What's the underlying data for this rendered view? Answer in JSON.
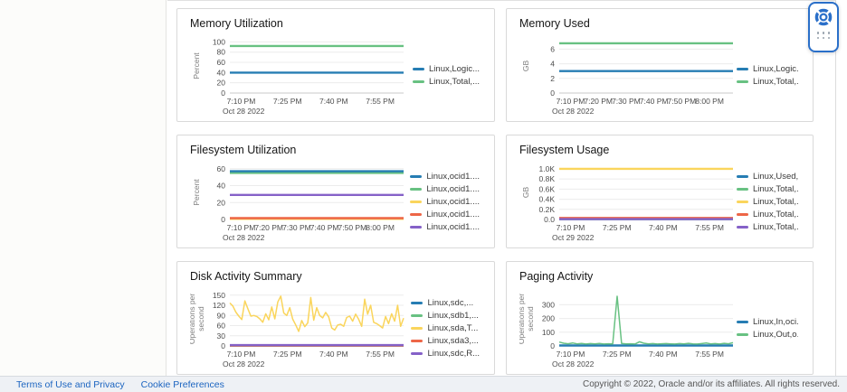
{
  "footer": {
    "links": [
      "Terms of Use and Privacy",
      "Cookie Preferences"
    ],
    "copyright": "Copyright © 2022, Oracle and/or its affiliates. All rights reserved."
  },
  "help_widget": {
    "icon": "lifebuoy-icon",
    "accent": "#2a6fc9"
  },
  "palette": {
    "blue": "#267db3",
    "green": "#68c182",
    "yellow": "#fad55c",
    "red": "#ed6647",
    "purple": "#8561c8"
  },
  "chart_data": [
    {
      "id": "memory-utilization",
      "type": "line",
      "title": "Memory Utilization",
      "ylabel": "Percent",
      "ymax": 106,
      "yticks": [
        {
          "v": 0,
          "l": "0"
        },
        {
          "v": 20,
          "l": "20"
        },
        {
          "v": 40,
          "l": "40"
        },
        {
          "v": 60,
          "l": "60"
        },
        {
          "v": 80,
          "l": "80"
        },
        {
          "v": 100,
          "l": "100"
        }
      ],
      "xticks": [
        {
          "label": "7:10 PM",
          "f": 0.065
        },
        {
          "label": "7:25 PM",
          "f": 0.332
        },
        {
          "label": "7:40 PM",
          "f": 0.598
        },
        {
          "label": "7:55 PM",
          "f": 0.865
        }
      ],
      "date": "Oct 28 2022",
      "series": [
        {
          "name": "Linux,Logic...",
          "color": "#267db3",
          "values": [
            40
          ]
        },
        {
          "name": "Linux,Total,...",
          "color": "#68c182",
          "values": [
            92
          ]
        }
      ]
    },
    {
      "id": "memory-used",
      "type": "line",
      "title": "Memory Used",
      "ylabel": "GB",
      "ymax": 7.4,
      "yticks": [
        {
          "v": 0,
          "l": "0"
        },
        {
          "v": 2,
          "l": "2"
        },
        {
          "v": 4,
          "l": "4"
        },
        {
          "v": 6,
          "l": "6"
        }
      ],
      "xticks": [
        {
          "label": "7:10 PM",
          "f": 0.065
        },
        {
          "label": "7:20 PM",
          "f": 0.225
        },
        {
          "label": "7:30 PM",
          "f": 0.385
        },
        {
          "label": "7:40 PM",
          "f": 0.545
        },
        {
          "label": "7:50 PM",
          "f": 0.705
        },
        {
          "label": "8:00 PM",
          "f": 0.865
        }
      ],
      "date": "Oct 28 2022",
      "series": [
        {
          "name": "Linux,Logic...",
          "color": "#267db3",
          "values": [
            3
          ]
        },
        {
          "name": "Linux,Total,...",
          "color": "#68c182",
          "values": [
            6.8
          ]
        }
      ]
    },
    {
      "id": "filesystem-utilization",
      "type": "line",
      "title": "Filesystem Utilization",
      "ylabel": "Percent",
      "ymax": 64,
      "yticks": [
        {
          "v": 0,
          "l": "0"
        },
        {
          "v": 20,
          "l": "20"
        },
        {
          "v": 40,
          "l": "40"
        },
        {
          "v": 60,
          "l": "60"
        }
      ],
      "xticks": [
        {
          "label": "7:10 PM",
          "f": 0.065
        },
        {
          "label": "7:20 PM",
          "f": 0.225
        },
        {
          "label": "7:30 PM",
          "f": 0.385
        },
        {
          "label": "7:40 PM",
          "f": 0.545
        },
        {
          "label": "7:50 PM",
          "f": 0.705
        },
        {
          "label": "8:00 PM",
          "f": 0.865
        }
      ],
      "date": "Oct 28 2022",
      "series": [
        {
          "name": "Linux,ocid1....",
          "color": "#68c182",
          "values": [
            55
          ]
        },
        {
          "name": "Linux,ocid1....",
          "color": "#267db3",
          "values": [
            57
          ]
        },
        {
          "name": "Linux,ocid1....",
          "color": "#fad55c",
          "values": [
            0.8
          ]
        },
        {
          "name": "Linux,ocid1....",
          "color": "#ed6647",
          "values": [
            1.6
          ]
        },
        {
          "name": "Linux,ocid1....",
          "color": "#8561c8",
          "values": [
            29
          ]
        }
      ],
      "legend_order": [
        "#267db3",
        "#68c182",
        "#fad55c",
        "#ed6647",
        "#8561c8"
      ]
    },
    {
      "id": "filesystem-usage",
      "type": "line",
      "title": "Filesystem Usage",
      "ylabel": "GB",
      "ymax": 1070,
      "yticks": [
        {
          "v": 0,
          "l": "0.0"
        },
        {
          "v": 200,
          "l": "0.2K"
        },
        {
          "v": 400,
          "l": "0.4K"
        },
        {
          "v": 600,
          "l": "0.6K"
        },
        {
          "v": 800,
          "l": "0.8K"
        },
        {
          "v": 1000,
          "l": "1.0K"
        }
      ],
      "xticks": [
        {
          "label": "7:10 PM",
          "f": 0.065
        },
        {
          "label": "7:25 PM",
          "f": 0.332
        },
        {
          "label": "7:40 PM",
          "f": 0.598
        },
        {
          "label": "7:55 PM",
          "f": 0.865
        }
      ],
      "date": "Oct 29 2022",
      "series": [
        {
          "name": "Linux,Used,...",
          "color": "#267db3",
          "values": [
            8
          ]
        },
        {
          "name": "Linux,Total,...",
          "color": "#68c182",
          "values": [
            8
          ]
        },
        {
          "name": "Linux,Total,...",
          "color": "#fad55c",
          "values": [
            1000
          ]
        },
        {
          "name": "Linux,Total,...",
          "color": "#ed6647",
          "values": [
            30
          ]
        },
        {
          "name": "Linux,Total,...",
          "color": "#8561c8",
          "values": [
            8
          ]
        }
      ]
    },
    {
      "id": "disk-activity-summary",
      "type": "line",
      "title": "Disk Activity Summary",
      "ylabel": "Operations per second",
      "ymax": 160,
      "yticks": [
        {
          "v": 0,
          "l": "0"
        },
        {
          "v": 30,
          "l": "30"
        },
        {
          "v": 60,
          "l": "60"
        },
        {
          "v": 90,
          "l": "90"
        },
        {
          "v": 120,
          "l": "120"
        },
        {
          "v": 150,
          "l": "150"
        }
      ],
      "xticks": [
        {
          "label": "7:10 PM",
          "f": 0.065
        },
        {
          "label": "7:25 PM",
          "f": 0.332
        },
        {
          "label": "7:40 PM",
          "f": 0.598
        },
        {
          "label": "7:55 PM",
          "f": 0.865
        }
      ],
      "date": "Oct 28 2022",
      "series": [
        {
          "name": "Linux,sdc,...",
          "color": "#267db3",
          "values": [
            1
          ]
        },
        {
          "name": "Linux,sdb1,...",
          "color": "#68c182",
          "values": [
            1
          ]
        },
        {
          "name": "Linux,sda,T...",
          "color": "#fad55c",
          "values": [
            127,
            118,
            100,
            88,
            78,
            133,
            110,
            88,
            90,
            87,
            80,
            70,
            95,
            77,
            115,
            80,
            130,
            147,
            97,
            90,
            113,
            79,
            62,
            43,
            75,
            57,
            68,
            143,
            76,
            113,
            90,
            83,
            99,
            86,
            53,
            47,
            62,
            64,
            58,
            84,
            88,
            73,
            94,
            79,
            58,
            138,
            94,
            120,
            70,
            66,
            60,
            53,
            87,
            66,
            95,
            73,
            120,
            58,
            82
          ]
        },
        {
          "name": "Linux,sda3,...",
          "color": "#ed6647",
          "values": [
            1
          ]
        },
        {
          "name": "Linux,sdc,R...",
          "color": "#8561c8",
          "values": [
            2.5
          ]
        }
      ]
    },
    {
      "id": "paging-activity",
      "type": "line",
      "title": "Paging Activity",
      "ylabel": "Operations per second",
      "ymax": 395,
      "yticks": [
        {
          "v": 0,
          "l": "0"
        },
        {
          "v": 100,
          "l": "100"
        },
        {
          "v": 200,
          "l": "200"
        },
        {
          "v": 300,
          "l": "300"
        }
      ],
      "xticks": [
        {
          "label": "7:10 PM",
          "f": 0.065
        },
        {
          "label": "7:25 PM",
          "f": 0.332
        },
        {
          "label": "7:40 PM",
          "f": 0.598
        },
        {
          "label": "7:55 PM",
          "f": 0.865
        }
      ],
      "date": "Oct 28 2022",
      "series": [
        {
          "name": "Linux,In,oci...",
          "color": "#267db3",
          "values": [
            3
          ]
        },
        {
          "name": "Linux,Out,o...",
          "color": "#68c182",
          "values": [
            28,
            20,
            16,
            22,
            15,
            18,
            14,
            17,
            15,
            18,
            14,
            16,
            15,
            362,
            18,
            15,
            16,
            14,
            30,
            20,
            15,
            17,
            14,
            16,
            17,
            15,
            14,
            17,
            15,
            19,
            15,
            14,
            17,
            21,
            15,
            17,
            14,
            19,
            16,
            24
          ]
        }
      ]
    }
  ]
}
